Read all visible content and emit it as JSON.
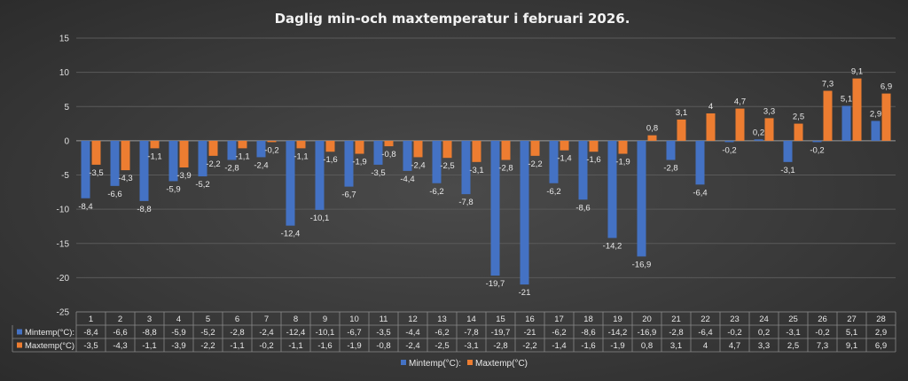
{
  "chart_data": {
    "type": "bar",
    "title": "Daglig min-och maxtemperatur i februari 2026.",
    "categories": [
      "1",
      "2",
      "3",
      "4",
      "5",
      "6",
      "7",
      "8",
      "9",
      "10",
      "11",
      "12",
      "13",
      "14",
      "15",
      "16",
      "17",
      "18",
      "19",
      "20",
      "21",
      "22",
      "23",
      "24",
      "25",
      "26",
      "27",
      "28"
    ],
    "series": [
      {
        "name": "Mintemp(°C):",
        "color": "#4472c4",
        "values": [
          -8.4,
          -6.6,
          -8.8,
          -5.9,
          -5.2,
          -2.8,
          -2.4,
          -12.4,
          -10.1,
          -6.7,
          -3.5,
          -4.4,
          -6.2,
          -7.8,
          -19.7,
          -21,
          -6.2,
          -8.6,
          -14.2,
          -16.9,
          -2.8,
          -6.4,
          -0.2,
          0.2,
          -3.1,
          -0.2,
          5.1,
          2.9
        ],
        "labels": [
          "-8,4",
          "-6,6",
          "-8,8",
          "-5,9",
          "-5,2",
          "-2,8",
          "-2,4",
          "-12,4",
          "-10,1",
          "-6,7",
          "-3,5",
          "-4,4",
          "-6,2",
          "-7,8",
          "-19,7",
          "-21",
          "-6,2",
          "-8,6",
          "-14,2",
          "-16,9",
          "-2,8",
          "-6,4",
          "-0,2",
          "0,2",
          "-3,1",
          "-0,2",
          "5,1",
          "2,9"
        ]
      },
      {
        "name": "Maxtemp(°C)",
        "color": "#ed7d31",
        "values": [
          -3.5,
          -4.3,
          -1.1,
          -3.9,
          -2.2,
          -1.1,
          -0.2,
          -1.1,
          -1.6,
          -1.9,
          -0.8,
          -2.4,
          -2.5,
          -3.1,
          -2.8,
          -2.2,
          -1.4,
          -1.6,
          -1.9,
          0.8,
          3.1,
          4,
          4.7,
          3.3,
          2.5,
          7.3,
          9.1,
          6.9
        ],
        "labels": [
          "-3,5",
          "-4,3",
          "-1,1",
          "-3,9",
          "-2,2",
          "-1,1",
          "-0,2",
          "-1,1",
          "-1,6",
          "-1,9",
          "-0,8",
          "-2,4",
          "-2,5",
          "-3,1",
          "-2,8",
          "-2,2",
          "-1,4",
          "-1,6",
          "-1,9",
          "0,8",
          "3,1",
          "4",
          "4,7",
          "3,3",
          "2,5",
          "7,3",
          "9,1",
          "6,9"
        ]
      }
    ],
    "ylim": [
      -25,
      15
    ],
    "yticks": [
      "15",
      "10",
      "5",
      "0",
      "-5",
      "-10",
      "-15",
      "-20",
      "-25"
    ],
    "ytick_values": [
      15,
      10,
      5,
      0,
      -5,
      -10,
      -15,
      -20,
      -25
    ],
    "grid": true,
    "legend": "bottom",
    "data_table": true
  }
}
